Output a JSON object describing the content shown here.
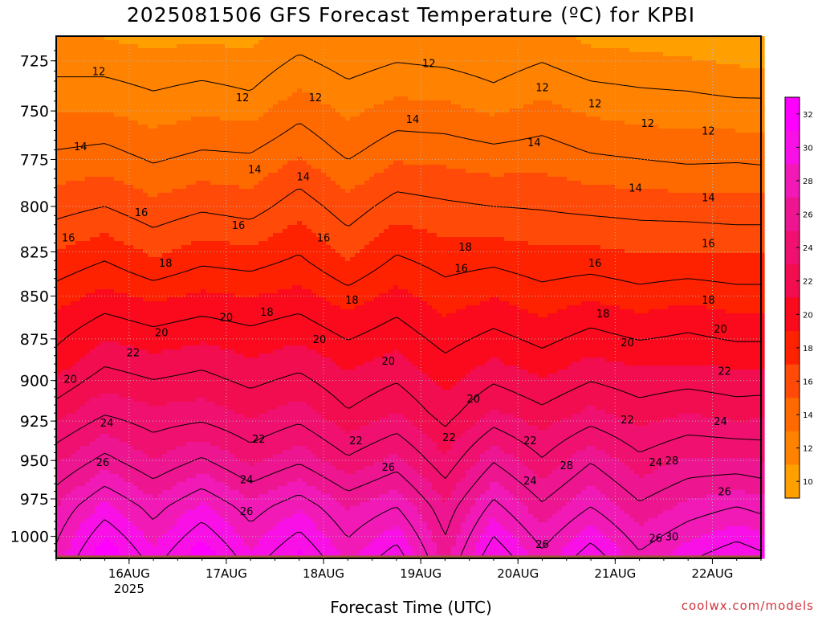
{
  "title": "2025081506 GFS Forecast Temperature (ºC) for KPBI",
  "xlabel": "Forecast Time (UTC)",
  "credit": "coolwx.com/models",
  "colors": {
    "ground": "#a0583a",
    "contour_line": "#000000",
    "grid": "#b4b4b4"
  },
  "chart_data": {
    "type": "heatmap",
    "title": "2025081506 GFS Forecast Temperature (ºC) for KPBI",
    "xlabel": "Forecast Time (UTC)",
    "ylabel": "",
    "x_ticks": [
      "16AUG",
      "17AUG",
      "18AUG",
      "19AUG",
      "20AUG",
      "21AUG",
      "22AUG"
    ],
    "x_year_label": "2025",
    "xlim_hours_from_2025081506": [
      0,
      174
    ],
    "y_ticks": [
      "725",
      "750",
      "775",
      "800",
      "825",
      "850",
      "875",
      "900",
      "925",
      "950",
      "975",
      "1000"
    ],
    "ylim_hpa": [
      1015,
      713
    ],
    "grid": true,
    "colorbar": {
      "placement": "right",
      "levels": [
        {
          "label": "32",
          "color": "#ff00ff"
        },
        {
          "label": "30",
          "color": "#f910e6"
        },
        {
          "label": "28",
          "color": "#f11ab7"
        },
        {
          "label": "26",
          "color": "#ee1590"
        },
        {
          "label": "24",
          "color": "#f01070"
        },
        {
          "label": "22",
          "color": "#f20c50"
        },
        {
          "label": "20",
          "color": "#fa0a1c"
        },
        {
          "label": "18",
          "color": "#fe2200"
        },
        {
          "label": "16",
          "color": "#ff4a08"
        },
        {
          "label": "14",
          "color": "#ff6a00"
        },
        {
          "label": "12",
          "color": "#ff8200"
        },
        {
          "label": "10",
          "color": "#ffa000"
        }
      ]
    },
    "profile_axis_hpa": [
      715,
      740,
      770,
      800,
      830,
      860,
      890,
      920,
      950,
      980,
      1015
    ],
    "profiles": [
      {
        "t_hours": 0,
        "temps": [
          11.0,
          12.4,
          14.0,
          15.6,
          17.3,
          19.1,
          20.5,
          22.6,
          24.8,
          27.0,
          28.4
        ]
      },
      {
        "t_hours": 12,
        "temps": [
          11.0,
          12.4,
          14.2,
          16.0,
          18.0,
          20.0,
          21.9,
          23.9,
          26.4,
          29.3,
          32.2
        ]
      },
      {
        "t_hours": 24,
        "temps": [
          10.8,
          12.0,
          13.6,
          15.3,
          17.1,
          19.5,
          21.4,
          23.3,
          25.0,
          27.5,
          29.4
        ]
      },
      {
        "t_hours": 36,
        "temps": [
          10.9,
          12.3,
          14.0,
          15.8,
          17.8,
          19.9,
          21.8,
          23.5,
          26.2,
          29.2,
          32.0
        ]
      },
      {
        "t_hours": 48,
        "temps": [
          10.8,
          12.0,
          13.9,
          15.5,
          17.6,
          19.6,
          21.2,
          22.8,
          24.7,
          27.4,
          29.3
        ]
      },
      {
        "t_hours": 60,
        "temps": [
          11.6,
          13.1,
          14.8,
          16.6,
          18.2,
          20.0,
          21.7,
          23.5,
          25.8,
          28.8,
          31.4
        ]
      },
      {
        "t_hours": 72,
        "temps": [
          11.0,
          12.3,
          13.7,
          15.4,
          17.0,
          19.1,
          20.8,
          22.1,
          24.2,
          26.9,
          28.7
        ]
      },
      {
        "t_hours": 84,
        "temps": [
          11.4,
          12.8,
          14.6,
          16.5,
          18.2,
          19.9,
          21.4,
          23.0,
          25.4,
          28.0,
          30.8
        ]
      },
      {
        "t_hours": 96,
        "temps": [
          11.2,
          12.7,
          14.5,
          16.2,
          17.6,
          18.9,
          20.3,
          21.5,
          23.2,
          25.2,
          26.6
        ]
      },
      {
        "t_hours": 108,
        "temps": [
          11.0,
          12.2,
          14.2,
          16.0,
          17.8,
          19.5,
          21.2,
          23.2,
          25.9,
          28.4,
          31.2
        ]
      },
      {
        "t_hours": 120,
        "temps": [
          11.4,
          12.8,
          14.4,
          15.9,
          17.4,
          18.9,
          20.5,
          22.3,
          24.1,
          26.2,
          28.4
        ]
      },
      {
        "t_hours": 132,
        "temps": [
          10.8,
          12.3,
          13.9,
          15.7,
          17.5,
          19.5,
          21.3,
          23.3,
          25.9,
          28.0,
          30.9
        ]
      },
      {
        "t_hours": 144,
        "temps": [
          10.7,
          12.1,
          13.7,
          15.6,
          17.2,
          19.0,
          20.9,
          22.5,
          24.3,
          26.2,
          28.3
        ]
      },
      {
        "t_hours": 156,
        "temps": [
          10.5,
          12.0,
          13.5,
          15.5,
          17.3,
          19.4,
          21.0,
          23.0,
          25.2,
          27.3,
          29.8
        ]
      },
      {
        "t_hours": 168,
        "temps": [
          10.2,
          11.8,
          13.6,
          15.4,
          17.2,
          19.0,
          20.8,
          22.6,
          25.2,
          28.0,
          31.0
        ]
      },
      {
        "t_hours": 174,
        "temps": [
          10.1,
          11.8,
          13.5,
          15.4,
          17.2,
          19.0,
          20.8,
          22.7,
          25.0,
          27.6,
          30.4
        ]
      }
    ],
    "contour_labels": [
      {
        "text": "12",
        "t_hours": 10.5,
        "p": 730
      },
      {
        "text": "12",
        "t_hours": 46,
        "p": 743
      },
      {
        "text": "12",
        "t_hours": 64,
        "p": 743
      },
      {
        "text": "12",
        "t_hours": 92,
        "p": 726
      },
      {
        "text": "12",
        "t_hours": 120,
        "p": 738
      },
      {
        "text": "12",
        "t_hours": 133,
        "p": 746
      },
      {
        "text": "12",
        "t_hours": 146,
        "p": 756
      },
      {
        "text": "12",
        "t_hours": 161,
        "p": 760
      },
      {
        "text": "14",
        "t_hours": 6,
        "p": 768
      },
      {
        "text": "14",
        "t_hours": 49,
        "p": 780
      },
      {
        "text": "14",
        "t_hours": 61,
        "p": 784
      },
      {
        "text": "14",
        "t_hours": 88,
        "p": 754
      },
      {
        "text": "14",
        "t_hours": 118,
        "p": 766
      },
      {
        "text": "14",
        "t_hours": 143,
        "p": 790
      },
      {
        "text": "14",
        "t_hours": 161,
        "p": 795
      },
      {
        "text": "16",
        "t_hours": 3,
        "p": 817
      },
      {
        "text": "16",
        "t_hours": 21,
        "p": 803
      },
      {
        "text": "16",
        "t_hours": 45,
        "p": 810
      },
      {
        "text": "16",
        "t_hours": 66,
        "p": 817
      },
      {
        "text": "16",
        "t_hours": 100,
        "p": 834
      },
      {
        "text": "16",
        "t_hours": 133,
        "p": 831
      },
      {
        "text": "16",
        "t_hours": 161,
        "p": 820
      },
      {
        "text": "18",
        "t_hours": 27,
        "p": 831
      },
      {
        "text": "18",
        "t_hours": 52,
        "p": 859
      },
      {
        "text": "18",
        "t_hours": 73,
        "p": 852
      },
      {
        "text": "18",
        "t_hours": 101,
        "p": 822
      },
      {
        "text": "18",
        "t_hours": 135,
        "p": 860
      },
      {
        "text": "18",
        "t_hours": 161,
        "p": 852
      },
      {
        "text": "20",
        "t_hours": 3.5,
        "p": 899
      },
      {
        "text": "20",
        "t_hours": 26,
        "p": 871
      },
      {
        "text": "20",
        "t_hours": 42,
        "p": 862
      },
      {
        "text": "20",
        "t_hours": 65,
        "p": 875
      },
      {
        "text": "20",
        "t_hours": 82,
        "p": 888
      },
      {
        "text": "20",
        "t_hours": 103,
        "p": 911
      },
      {
        "text": "20",
        "t_hours": 141,
        "p": 877
      },
      {
        "text": "20",
        "t_hours": 164,
        "p": 869
      },
      {
        "text": "22",
        "t_hours": 19,
        "p": 883
      },
      {
        "text": "22",
        "t_hours": 50,
        "p": 936
      },
      {
        "text": "22",
        "t_hours": 74,
        "p": 937
      },
      {
        "text": "22",
        "t_hours": 97,
        "p": 935
      },
      {
        "text": "22",
        "t_hours": 117,
        "p": 937
      },
      {
        "text": "22",
        "t_hours": 141,
        "p": 924
      },
      {
        "text": "22",
        "t_hours": 165,
        "p": 894
      },
      {
        "text": "24",
        "t_hours": 12.5,
        "p": 926
      },
      {
        "text": "24",
        "t_hours": 47,
        "p": 962
      },
      {
        "text": "24",
        "t_hours": 117,
        "p": 963
      },
      {
        "text": "24",
        "t_hours": 148,
        "p": 951
      },
      {
        "text": "24",
        "t_hours": 164,
        "p": 925
      },
      {
        "text": "26",
        "t_hours": 11.5,
        "p": 951
      },
      {
        "text": "26",
        "t_hours": 47,
        "p": 983
      },
      {
        "text": "26",
        "t_hours": 82,
        "p": 954
      },
      {
        "text": "26",
        "t_hours": 120,
        "p": 1005
      },
      {
        "text": "26",
        "t_hours": 148,
        "p": 1001
      },
      {
        "text": "26",
        "t_hours": 165,
        "p": 970
      },
      {
        "text": "28",
        "t_hours": 126,
        "p": 953
      },
      {
        "text": "28",
        "t_hours": 152,
        "p": 950
      },
      {
        "text": "30",
        "t_hours": 152,
        "p": 1000
      }
    ]
  }
}
